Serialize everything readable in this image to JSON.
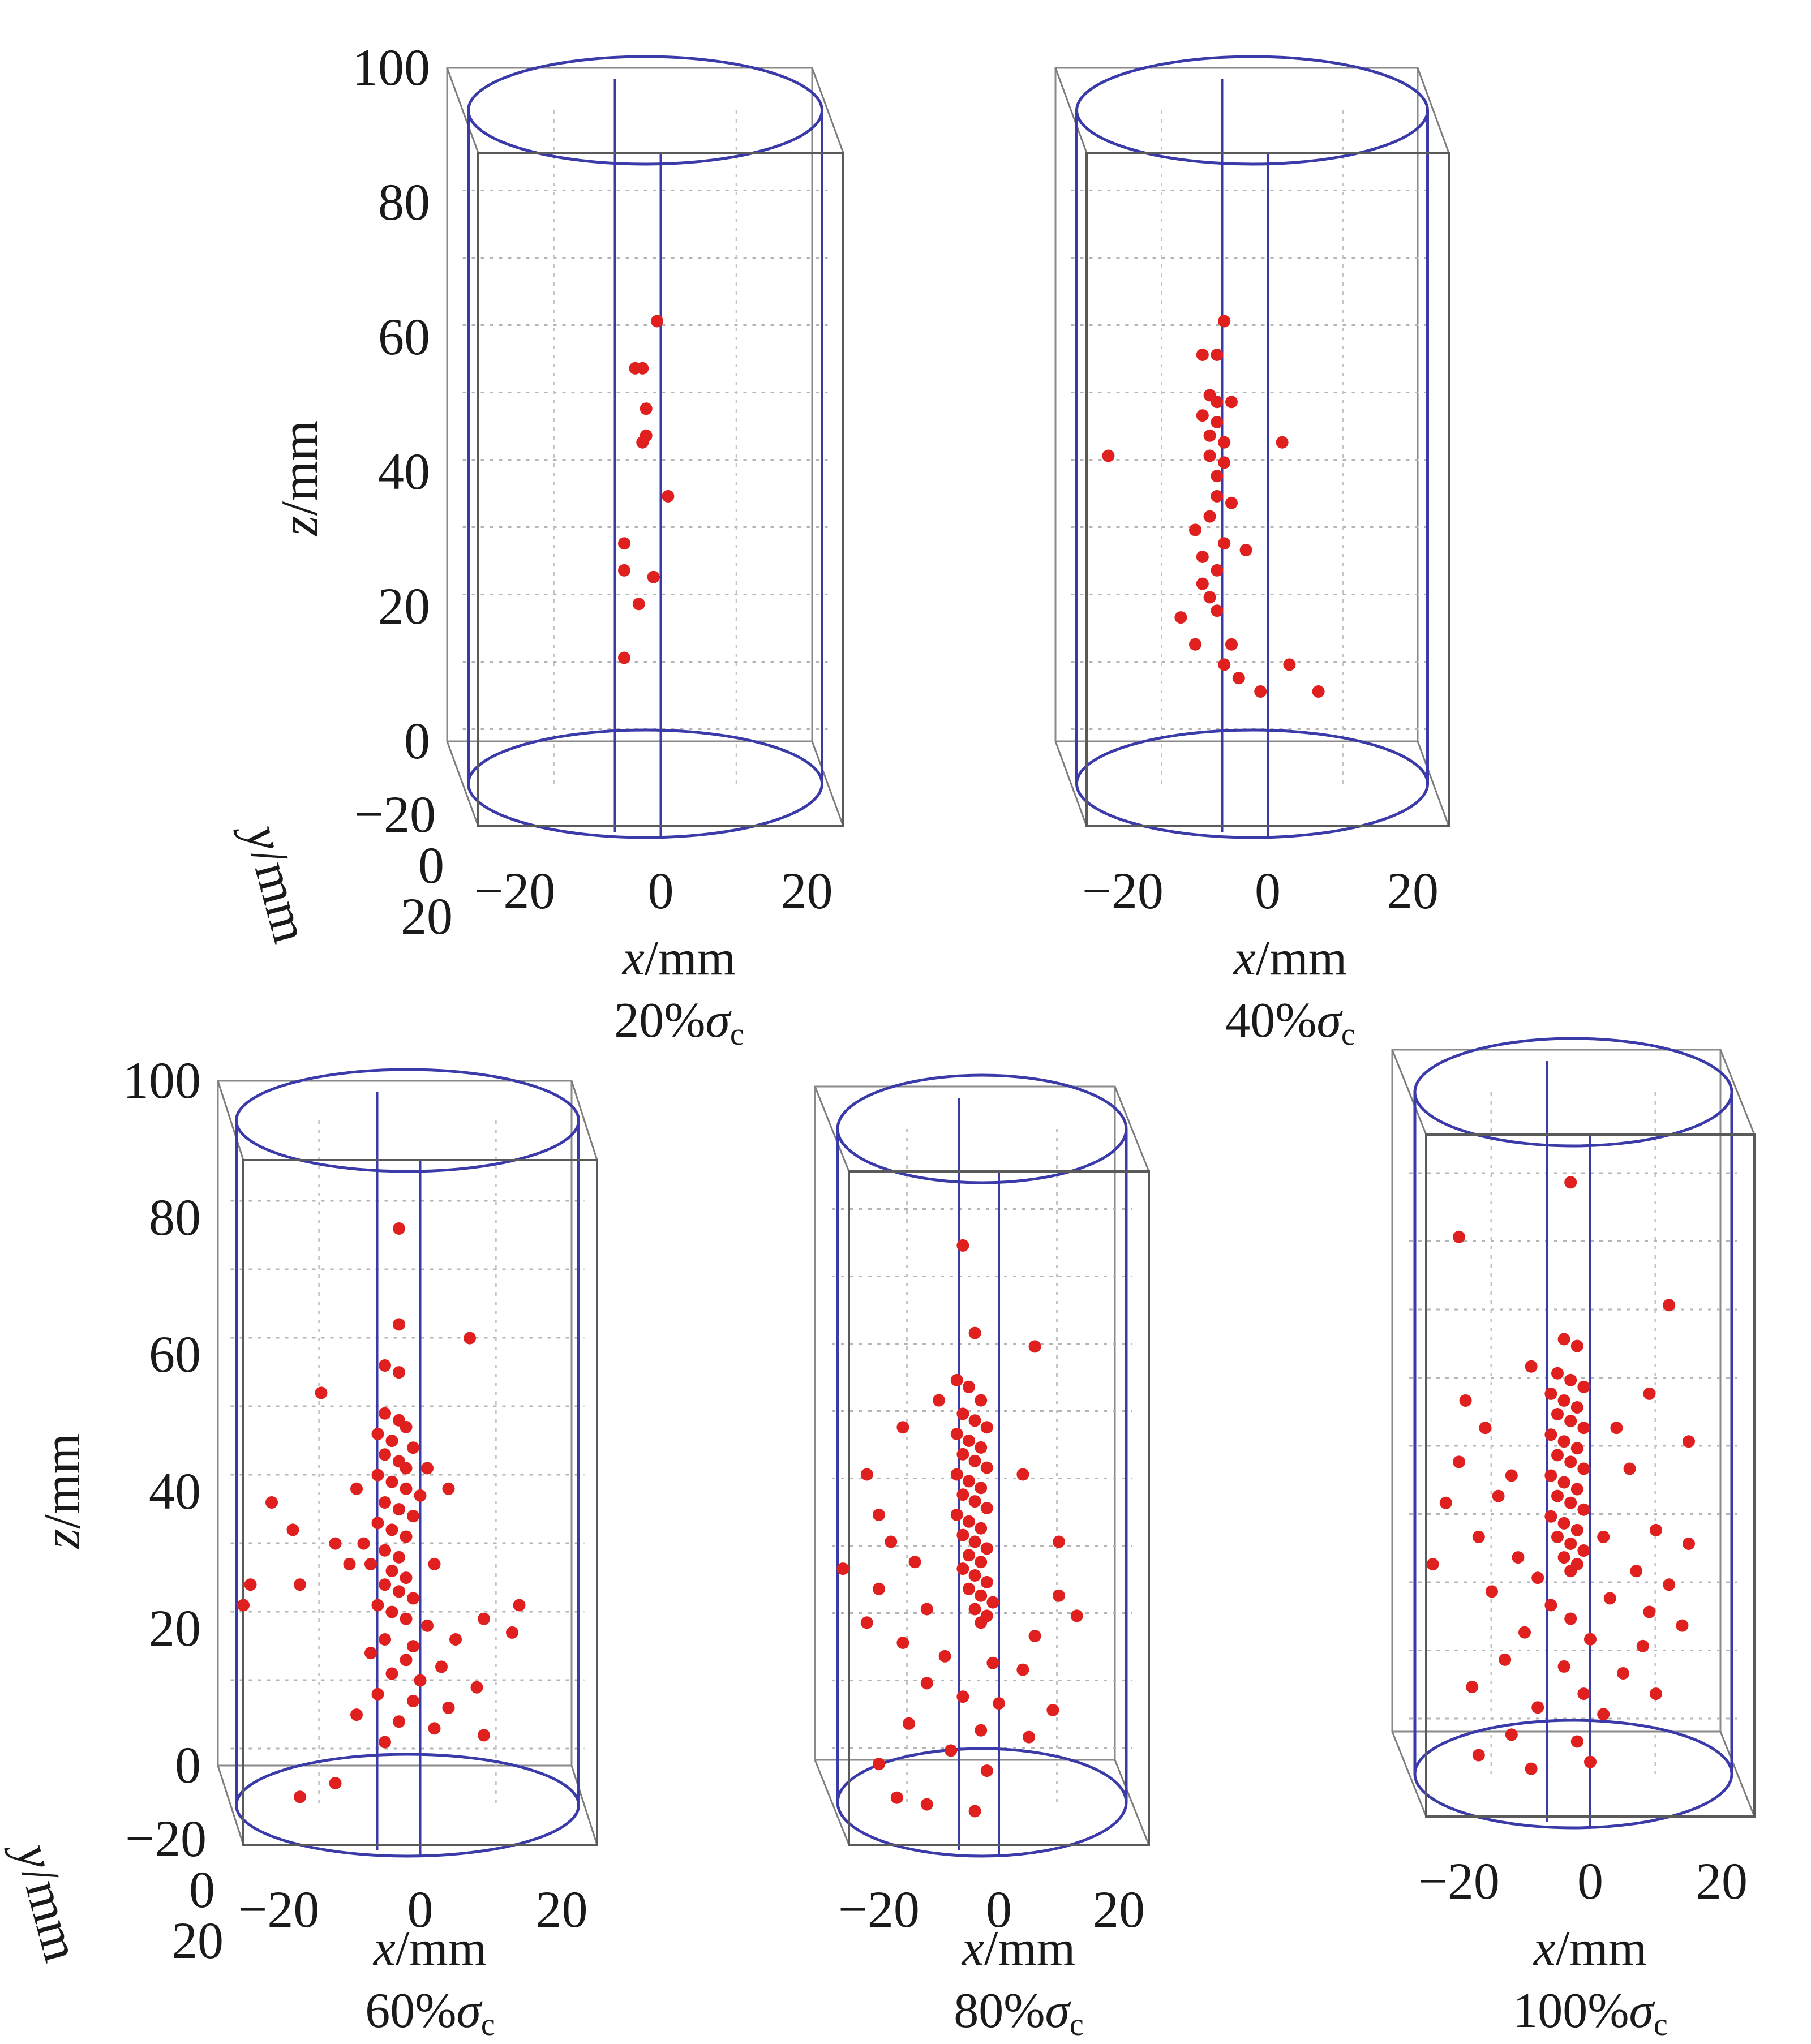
{
  "chart_data": [
    {
      "type": "scatter",
      "x_ticks": [
        "−20",
        "0",
        "20"
      ],
      "y_ticks": [
        "−20",
        "0",
        "20"
      ],
      "z_ticks": [
        "0",
        "20",
        "40",
        "60",
        "80",
        "100"
      ],
      "xlim": [
        -25,
        25
      ],
      "ylim": [
        -25,
        25
      ],
      "zlim": [
        0,
        100
      ],
      "xlabel_var": "x",
      "xlabel_unit": "/mm",
      "ylabel_var": "y",
      "ylabel_unit": "/mm",
      "zlabel_var": "z",
      "zlabel_unit": "/mm",
      "condition_value": "20%",
      "condition_symbol": "σ",
      "condition_sub": "c",
      "points": [
        [
          -0.5,
          0,
          75
        ],
        [
          -2.5,
          0,
          68
        ],
        [
          -3.5,
          0,
          68
        ],
        [
          -2,
          0,
          62
        ],
        [
          -2,
          0,
          58
        ],
        [
          -2.5,
          0,
          57
        ],
        [
          1,
          0,
          49
        ],
        [
          -5,
          0,
          42
        ],
        [
          -5,
          0,
          38
        ],
        [
          -1,
          0,
          37
        ],
        [
          -3,
          0,
          33
        ],
        [
          -5,
          0,
          25
        ]
      ],
      "show_y_axis": true
    },
    {
      "type": "scatter",
      "x_ticks": [
        "−20",
        "0",
        "20"
      ],
      "y_ticks": [],
      "z_ticks": [],
      "xlim": [
        -25,
        25
      ],
      "ylim": [
        -25,
        25
      ],
      "zlim": [
        0,
        100
      ],
      "xlabel_var": "x",
      "xlabel_unit": "/mm",
      "condition_value": "40%",
      "condition_symbol": "σ",
      "condition_sub": "c",
      "points": [
        [
          -6,
          0,
          75
        ],
        [
          -9,
          0,
          70
        ],
        [
          -7,
          0,
          70
        ],
        [
          -8,
          0,
          64
        ],
        [
          -7,
          0,
          63
        ],
        [
          -5,
          0,
          63
        ],
        [
          -9,
          0,
          61
        ],
        [
          -7,
          0,
          60
        ],
        [
          -8,
          0,
          58
        ],
        [
          -6,
          0,
          57
        ],
        [
          -8,
          0,
          55
        ],
        [
          -6,
          0,
          54
        ],
        [
          -7,
          0,
          52
        ],
        [
          2,
          0,
          57
        ],
        [
          -22,
          0,
          55
        ],
        [
          -7,
          0,
          49
        ],
        [
          -5,
          0,
          48
        ],
        [
          -8,
          0,
          46
        ],
        [
          -10,
          0,
          44
        ],
        [
          -6,
          0,
          42
        ],
        [
          -3,
          0,
          41
        ],
        [
          -9,
          0,
          40
        ],
        [
          -7,
          0,
          38
        ],
        [
          -9,
          0,
          36
        ],
        [
          -8,
          0,
          34
        ],
        [
          -12,
          0,
          31
        ],
        [
          -7,
          0,
          32
        ],
        [
          -10,
          0,
          27
        ],
        [
          -5,
          0,
          27
        ],
        [
          -6,
          0,
          24
        ],
        [
          -4,
          0,
          22
        ],
        [
          -1,
          0,
          20
        ],
        [
          3,
          0,
          24
        ],
        [
          7,
          0,
          20
        ]
      ],
      "show_y_axis": false
    },
    {
      "type": "scatter",
      "x_ticks": [
        "−20",
        "0",
        "20"
      ],
      "y_ticks": [
        "−20",
        "0",
        "20"
      ],
      "z_ticks": [
        "0",
        "20",
        "40",
        "60",
        "80",
        "100"
      ],
      "xlim": [
        -25,
        25
      ],
      "ylim": [
        -25,
        25
      ],
      "zlim": [
        0,
        100
      ],
      "xlabel_var": "x",
      "xlabel_unit": "/mm",
      "ylabel_var": "y",
      "ylabel_unit": "/mm",
      "zlabel_var": "z",
      "zlabel_unit": "/mm",
      "zlabel_show": true,
      "condition_value": "60%",
      "condition_symbol": "σ",
      "condition_sub": "c",
      "points": [
        [
          -3,
          0,
          90
        ],
        [
          -3,
          0,
          76
        ],
        [
          7,
          0,
          74
        ],
        [
          -5,
          0,
          70
        ],
        [
          -3,
          0,
          69
        ],
        [
          -14,
          0,
          66
        ],
        [
          -5,
          0,
          63
        ],
        [
          -3,
          0,
          62
        ],
        [
          -2,
          0,
          61
        ],
        [
          -6,
          0,
          60
        ],
        [
          -4,
          0,
          59
        ],
        [
          -1,
          0,
          58
        ],
        [
          -5,
          0,
          57
        ],
        [
          -3,
          0,
          56
        ],
        [
          -2,
          0,
          55
        ],
        [
          1,
          0,
          55
        ],
        [
          -6,
          0,
          54
        ],
        [
          -4,
          0,
          53
        ],
        [
          -2,
          0,
          52
        ],
        [
          0,
          0,
          51
        ],
        [
          -5,
          0,
          50
        ],
        [
          -3,
          0,
          49
        ],
        [
          -1,
          0,
          48
        ],
        [
          -6,
          0,
          47
        ],
        [
          -4,
          0,
          46
        ],
        [
          -2,
          0,
          45
        ],
        [
          -8,
          0,
          44
        ],
        [
          -5,
          0,
          43
        ],
        [
          -3,
          0,
          42
        ],
        [
          -7,
          0,
          41
        ],
        [
          -4,
          0,
          40
        ],
        [
          -2,
          0,
          39
        ],
        [
          -5,
          0,
          38
        ],
        [
          -3,
          0,
          37
        ],
        [
          -1,
          0,
          36
        ],
        [
          -6,
          0,
          35
        ],
        [
          -4,
          0,
          34
        ],
        [
          -2,
          0,
          33
        ],
        [
          -9,
          0,
          52
        ],
        [
          4,
          0,
          52
        ],
        [
          -21,
          0,
          50
        ],
        [
          -18,
          0,
          46
        ],
        [
          -12,
          0,
          44
        ],
        [
          -10,
          0,
          41
        ],
        [
          2,
          0,
          41
        ],
        [
          -17,
          0,
          38
        ],
        [
          -24,
          0,
          38
        ],
        [
          -25,
          0,
          35
        ],
        [
          14,
          0,
          35
        ],
        [
          9,
          0,
          33
        ],
        [
          13,
          0,
          31
        ],
        [
          -5,
          0,
          30
        ],
        [
          -1,
          0,
          29
        ],
        [
          -7,
          0,
          28
        ],
        [
          -2,
          0,
          27
        ],
        [
          3,
          0,
          26
        ],
        [
          -4,
          0,
          25
        ],
        [
          0,
          0,
          24
        ],
        [
          8,
          0,
          23
        ],
        [
          -6,
          0,
          22
        ],
        [
          -1,
          0,
          21
        ],
        [
          4,
          0,
          20
        ],
        [
          -9,
          0,
          19
        ],
        [
          -3,
          0,
          18
        ],
        [
          2,
          0,
          17
        ],
        [
          9,
          0,
          16
        ],
        [
          -5,
          0,
          15
        ],
        [
          -12,
          0,
          9
        ],
        [
          -17,
          0,
          7
        ],
        [
          1,
          0,
          32
        ],
        [
          5,
          0,
          30
        ]
      ],
      "show_y_axis": true
    },
    {
      "type": "scatter",
      "x_ticks": [
        "−20",
        "0",
        "20"
      ],
      "y_ticks": [],
      "z_ticks": [],
      "xlim": [
        -25,
        25
      ],
      "ylim": [
        -25,
        25
      ],
      "zlim": [
        0,
        100
      ],
      "xlabel_var": "x",
      "xlabel_unit": "/mm",
      "condition_value": "80%",
      "condition_symbol": "σ",
      "condition_sub": "c",
      "points": [
        [
          -6,
          0,
          89
        ],
        [
          -4,
          0,
          76
        ],
        [
          6,
          0,
          74
        ],
        [
          -7,
          0,
          69
        ],
        [
          -5,
          0,
          68
        ],
        [
          -3,
          0,
          66
        ],
        [
          -6,
          0,
          64
        ],
        [
          -4,
          0,
          63
        ],
        [
          -2,
          0,
          62
        ],
        [
          -7,
          0,
          61
        ],
        [
          -5,
          0,
          60
        ],
        [
          -3,
          0,
          59
        ],
        [
          -6,
          0,
          58
        ],
        [
          -4,
          0,
          57
        ],
        [
          -2,
          0,
          56
        ],
        [
          -7,
          0,
          55
        ],
        [
          -5,
          0,
          54
        ],
        [
          -3,
          0,
          53
        ],
        [
          -6,
          0,
          52
        ],
        [
          -4,
          0,
          51
        ],
        [
          -2,
          0,
          50
        ],
        [
          -7,
          0,
          49
        ],
        [
          -5,
          0,
          48
        ],
        [
          -3,
          0,
          47
        ],
        [
          -6,
          0,
          46
        ],
        [
          -4,
          0,
          45
        ],
        [
          -2,
          0,
          44
        ],
        [
          -5,
          0,
          43
        ],
        [
          -3,
          0,
          42
        ],
        [
          -6,
          0,
          41
        ],
        [
          -4,
          0,
          40
        ],
        [
          -2,
          0,
          39
        ],
        [
          -5,
          0,
          38
        ],
        [
          -3,
          0,
          37
        ],
        [
          -1,
          0,
          36
        ],
        [
          -4,
          0,
          35
        ],
        [
          -2,
          0,
          34
        ],
        [
          -3,
          0,
          33
        ],
        [
          -16,
          0,
          62
        ],
        [
          -10,
          0,
          66
        ],
        [
          -22,
          0,
          55
        ],
        [
          4,
          0,
          55
        ],
        [
          -20,
          0,
          49
        ],
        [
          -18,
          0,
          45
        ],
        [
          10,
          0,
          45
        ],
        [
          -14,
          0,
          42
        ],
        [
          -26,
          0,
          41
        ],
        [
          -20,
          0,
          38
        ],
        [
          10,
          0,
          37
        ],
        [
          -12,
          0,
          35
        ],
        [
          13,
          0,
          34
        ],
        [
          -22,
          0,
          33
        ],
        [
          6,
          0,
          31
        ],
        [
          -16,
          0,
          30
        ],
        [
          -9,
          0,
          28
        ],
        [
          -1,
          0,
          27
        ],
        [
          4,
          0,
          26
        ],
        [
          -12,
          0,
          24
        ],
        [
          -6,
          0,
          22
        ],
        [
          0,
          0,
          21
        ],
        [
          9,
          0,
          20
        ],
        [
          -15,
          0,
          18
        ],
        [
          -3,
          0,
          17
        ],
        [
          5,
          0,
          16
        ],
        [
          -8,
          0,
          14
        ],
        [
          -20,
          0,
          12
        ],
        [
          -2,
          0,
          11
        ],
        [
          -17,
          0,
          7
        ],
        [
          -12,
          0,
          6
        ],
        [
          -4,
          0,
          5
        ]
      ],
      "show_y_axis": false
    },
    {
      "type": "scatter",
      "x_ticks": [
        "−20",
        "0",
        "20"
      ],
      "y_ticks": [],
      "z_ticks": [],
      "xlim": [
        -25,
        25
      ],
      "ylim": [
        -25,
        25
      ],
      "zlim": [
        0,
        100
      ],
      "xlabel_var": "x",
      "xlabel_unit": "/mm",
      "condition_value": "100%",
      "condition_symbol": "σ",
      "condition_sub": "c",
      "points": [
        [
          -3,
          0,
          93
        ],
        [
          -20,
          0,
          85
        ],
        [
          12,
          0,
          75
        ],
        [
          -4,
          0,
          70
        ],
        [
          -2,
          0,
          69
        ],
        [
          -9,
          0,
          66
        ],
        [
          -5,
          0,
          65
        ],
        [
          -3,
          0,
          64
        ],
        [
          -1,
          0,
          63
        ],
        [
          -6,
          0,
          62
        ],
        [
          -4,
          0,
          61
        ],
        [
          -2,
          0,
          60
        ],
        [
          -5,
          0,
          59
        ],
        [
          -3,
          0,
          58
        ],
        [
          -1,
          0,
          57
        ],
        [
          -6,
          0,
          56
        ],
        [
          -4,
          0,
          55
        ],
        [
          -2,
          0,
          54
        ],
        [
          -5,
          0,
          53
        ],
        [
          -3,
          0,
          52
        ],
        [
          -1,
          0,
          51
        ],
        [
          -6,
          0,
          50
        ],
        [
          -4,
          0,
          49
        ],
        [
          -2,
          0,
          48
        ],
        [
          -5,
          0,
          47
        ],
        [
          -3,
          0,
          46
        ],
        [
          -1,
          0,
          45
        ],
        [
          -6,
          0,
          44
        ],
        [
          -4,
          0,
          43
        ],
        [
          -2,
          0,
          42
        ],
        [
          -5,
          0,
          41
        ],
        [
          -3,
          0,
          40
        ],
        [
          -1,
          0,
          39
        ],
        [
          -4,
          0,
          38
        ],
        [
          -2,
          0,
          37
        ],
        [
          -3,
          0,
          36
        ],
        [
          -19,
          0,
          61
        ],
        [
          9,
          0,
          62
        ],
        [
          -16,
          0,
          57
        ],
        [
          4,
          0,
          57
        ],
        [
          15,
          0,
          55
        ],
        [
          -20,
          0,
          52
        ],
        [
          -12,
          0,
          50
        ],
        [
          6,
          0,
          51
        ],
        [
          -14,
          0,
          47
        ],
        [
          -22,
          0,
          46
        ],
        [
          10,
          0,
          42
        ],
        [
          -17,
          0,
          41
        ],
        [
          2,
          0,
          41
        ],
        [
          15,
          0,
          40
        ],
        [
          -11,
          0,
          38
        ],
        [
          -24,
          0,
          37
        ],
        [
          7,
          0,
          36
        ],
        [
          -8,
          0,
          35
        ],
        [
          12,
          0,
          34
        ],
        [
          -15,
          0,
          33
        ],
        [
          3,
          0,
          32
        ],
        [
          -6,
          0,
          31
        ],
        [
          9,
          0,
          30
        ],
        [
          -3,
          0,
          29
        ],
        [
          14,
          0,
          28
        ],
        [
          -10,
          0,
          27
        ],
        [
          0,
          0,
          26
        ],
        [
          8,
          0,
          25
        ],
        [
          -13,
          0,
          23
        ],
        [
          -4,
          0,
          22
        ],
        [
          5,
          0,
          21
        ],
        [
          -18,
          0,
          19
        ],
        [
          -1,
          0,
          18
        ],
        [
          10,
          0,
          18
        ],
        [
          -8,
          0,
          16
        ],
        [
          2,
          0,
          15
        ],
        [
          -12,
          0,
          12
        ],
        [
          -2,
          0,
          11
        ],
        [
          -17,
          0,
          9
        ],
        [
          -9,
          0,
          7
        ],
        [
          0,
          0,
          8
        ]
      ],
      "show_y_axis": false
    }
  ]
}
